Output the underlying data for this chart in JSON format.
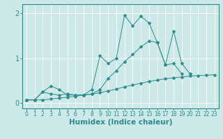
{
  "xlabel": "Humidex (Indice chaleur)",
  "xlim": [
    -0.5,
    23.5
  ],
  "ylim": [
    -0.12,
    2.2
  ],
  "x": [
    0,
    1,
    2,
    3,
    4,
    5,
    6,
    7,
    8,
    9,
    10,
    11,
    12,
    13,
    14,
    15,
    16,
    17,
    18,
    19,
    20,
    21,
    22,
    23
  ],
  "line1": [
    0.07,
    0.07,
    0.25,
    0.38,
    0.3,
    0.18,
    0.18,
    0.18,
    0.3,
    1.05,
    0.88,
    1.0,
    1.95,
    1.72,
    1.93,
    1.78,
    1.35,
    0.85,
    1.6,
    0.88,
    0.65,
    null,
    null,
    null
  ],
  "line2": [
    0.07,
    0.07,
    0.25,
    0.2,
    0.18,
    0.2,
    0.18,
    0.18,
    0.2,
    0.3,
    0.55,
    0.72,
    0.92,
    1.08,
    1.25,
    1.38,
    1.35,
    0.85,
    0.88,
    0.65,
    null,
    null,
    null,
    null
  ],
  "line3": [
    0.07,
    0.07,
    0.07,
    0.09,
    0.11,
    0.13,
    0.15,
    0.18,
    0.2,
    0.23,
    0.27,
    0.31,
    0.36,
    0.4,
    0.44,
    0.48,
    0.51,
    0.54,
    0.56,
    0.58,
    0.6,
    0.61,
    0.62,
    0.63
  ],
  "line_color": "#2d8b8b",
  "bg_color": "#cce8e8",
  "grid_color": "#ffffff",
  "marker_size": 2.5,
  "xticks": [
    0,
    1,
    2,
    3,
    4,
    5,
    6,
    7,
    8,
    9,
    10,
    11,
    12,
    13,
    14,
    15,
    16,
    17,
    18,
    19,
    20,
    21,
    22,
    23
  ],
  "yticks": [
    0,
    1,
    2
  ],
  "xtick_fontsize": 5.5,
  "ytick_fontsize": 7,
  "xlabel_fontsize": 7.5
}
